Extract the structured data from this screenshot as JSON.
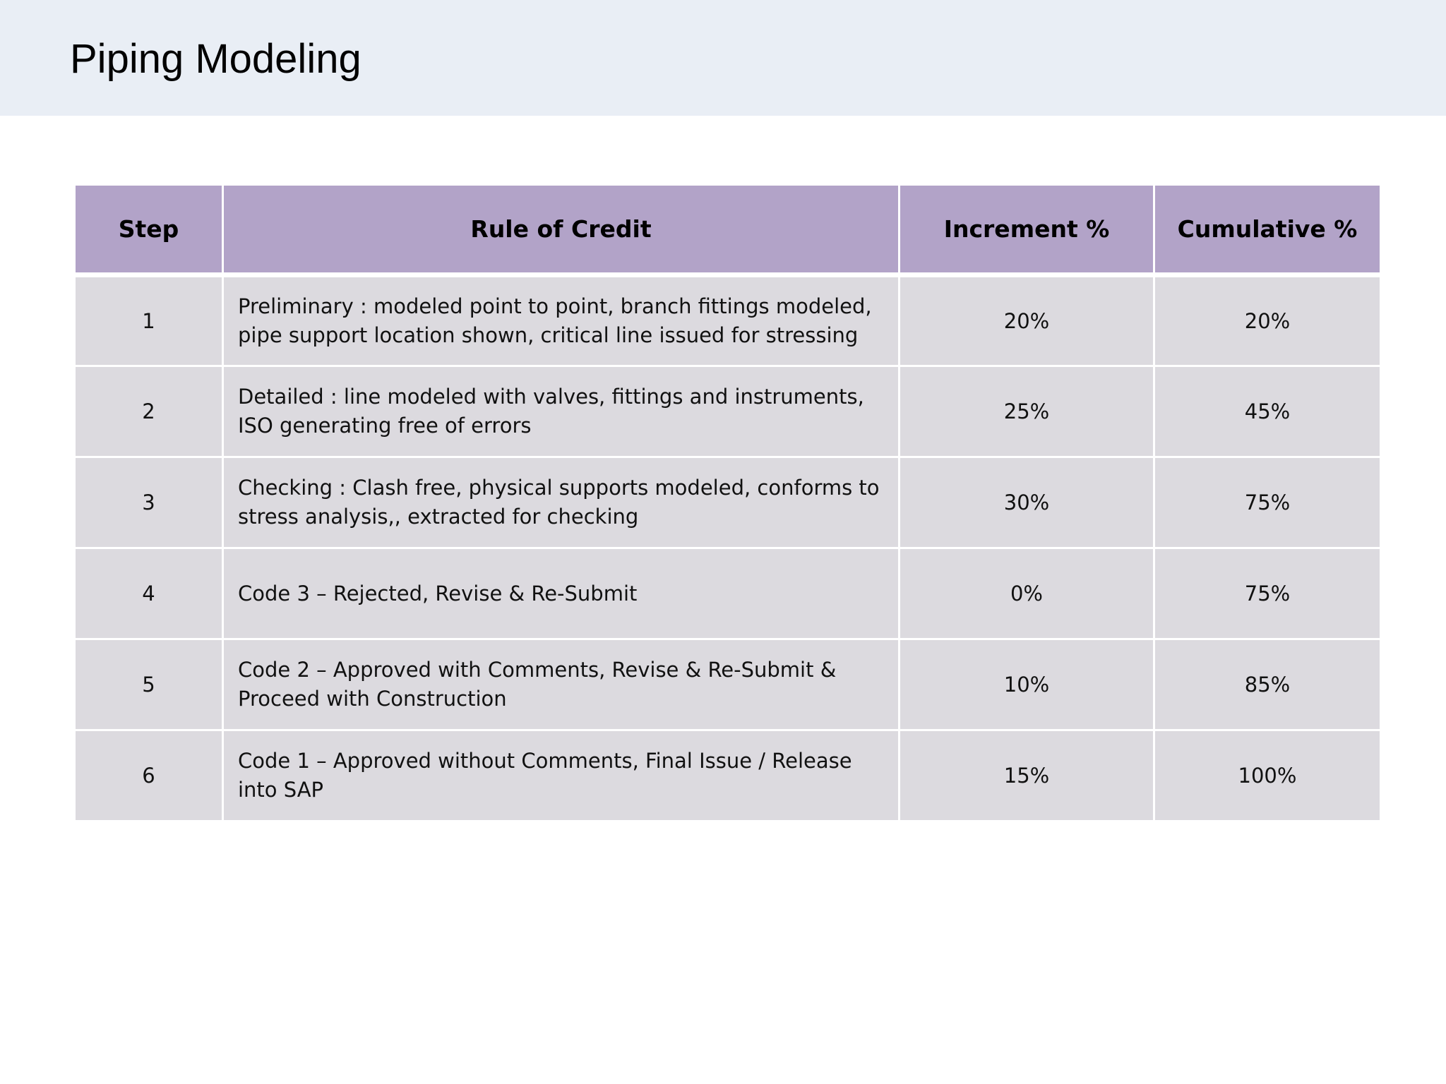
{
  "title": "Piping Modeling",
  "colors": {
    "title_band": "#e9eef5",
    "header_fill": "#b2a3c8",
    "row_fill": "#dcdadf"
  },
  "table": {
    "headers": {
      "step": "Step",
      "rule": "Rule of Credit",
      "increment": "Increment %",
      "cumulative": "Cumulative %"
    },
    "rows": [
      {
        "step": "1",
        "rule": "Preliminary : modeled point to point, branch fittings modeled, pipe support location shown, critical line issued for stressing",
        "increment": "20%",
        "cumulative": "20%"
      },
      {
        "step": "2",
        "rule": "Detailed : line modeled with valves, fittings and instruments, ISO generating free of errors",
        "increment": "25%",
        "cumulative": "45%"
      },
      {
        "step": "3",
        "rule": "Checking : Clash free, physical supports modeled, conforms to stress analysis,, extracted for checking",
        "increment": "30%",
        "cumulative": "75%"
      },
      {
        "step": "4",
        "rule": "Code 3 – Rejected, Revise & Re-Submit",
        "increment": "0%",
        "cumulative": "75%"
      },
      {
        "step": "5",
        "rule": "Code 2 – Approved with Comments, Revise & Re-Submit & Proceed with Construction",
        "increment": "10%",
        "cumulative": "85%"
      },
      {
        "step": "6",
        "rule": "Code 1 – Approved without Comments, Final Issue / Release into SAP",
        "increment": "15%",
        "cumulative": "100%"
      }
    ]
  }
}
